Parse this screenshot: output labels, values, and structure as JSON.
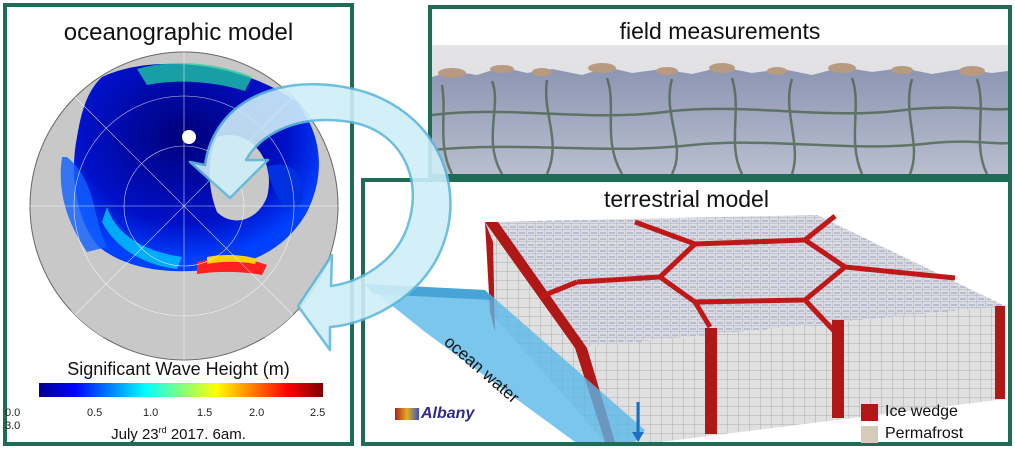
{
  "ocean_panel": {
    "title": "oceanographic model",
    "colorbar_title": "Significant Wave Height (m)",
    "ticks": [
      "0.0",
      "0.5",
      "1.0",
      "1.5",
      "2.0",
      "2.5",
      "3.0"
    ],
    "date_prefix": "July 23",
    "date_sup": "rd",
    "date_suffix": " 2017.  6am."
  },
  "field_panel": {
    "title": "field measurements"
  },
  "terrestrial_panel": {
    "title": "terrestrial model",
    "ocean_label": "ocean water",
    "logo_text": "Albany",
    "legend": [
      {
        "label": "Ice wedge",
        "color": "#b01818"
      },
      {
        "label": "Permafrost",
        "color": "#d6cbbb"
      }
    ]
  },
  "colors": {
    "panel_border": "#1f6b55",
    "arrow_fill": "#cfeef8",
    "arrow_stroke": "#5fb8dc",
    "ocean_water": "#5ab8e8"
  }
}
